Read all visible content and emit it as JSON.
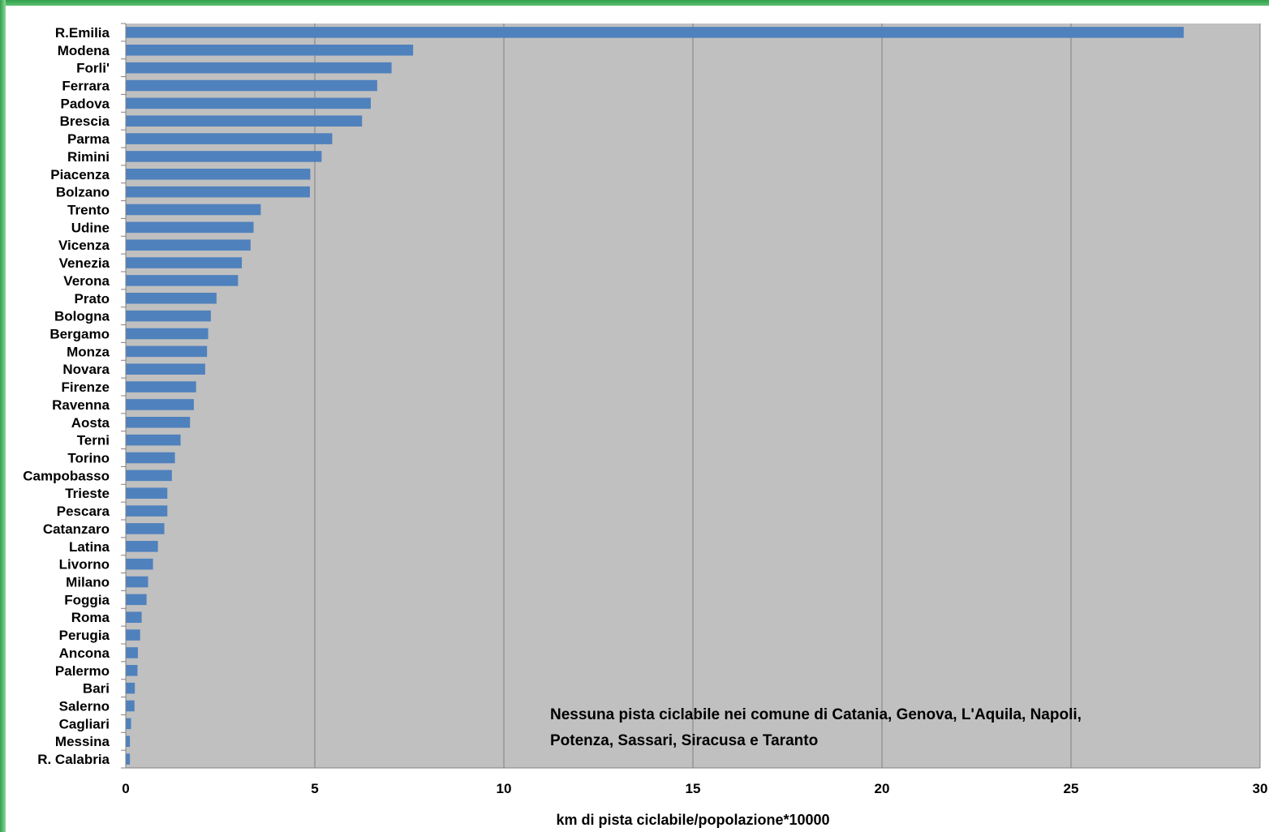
{
  "chart_data": {
    "type": "bar",
    "orientation": "horizontal",
    "categories": [
      "R.Emilia",
      "Modena",
      "Forli'",
      "Ferrara",
      "Padova",
      "Brescia",
      "Parma",
      "Rimini",
      "Piacenza",
      "Bolzano",
      "Trento",
      "Udine",
      "Vicenza",
      "Venezia",
      "Verona",
      "Prato",
      "Bologna",
      "Bergamo",
      "Monza",
      "Novara",
      "Firenze",
      "Ravenna",
      "Aosta",
      "Terni",
      "Torino",
      "Campobasso",
      "Trieste",
      "Pescara",
      "Catanzaro",
      "Latina",
      "Livorno",
      "Milano",
      "Foggia",
      "Roma",
      "Perugia",
      "Ancona",
      "Palermo",
      "Bari",
      "Salerno",
      "Cagliari",
      "Messina",
      "R. Calabria"
    ],
    "values": [
      27.98,
      7.6,
      7.03,
      6.65,
      6.48,
      6.25,
      5.46,
      5.18,
      4.88,
      4.87,
      3.57,
      3.38,
      3.3,
      3.07,
      2.97,
      2.4,
      2.25,
      2.18,
      2.15,
      2.1,
      1.86,
      1.8,
      1.7,
      1.45,
      1.3,
      1.22,
      1.1,
      1.1,
      1.02,
      0.85,
      0.72,
      0.59,
      0.55,
      0.42,
      0.38,
      0.32,
      0.31,
      0.24,
      0.23,
      0.14,
      0.11,
      0.11
    ],
    "xlabel": "km di pista ciclabile/popolazione*10000",
    "ylabel": "",
    "xlim": [
      0,
      30
    ],
    "xticks": [
      "0",
      "5",
      "10",
      "15",
      "20",
      "25",
      "30"
    ],
    "grid": true,
    "bar_color": "#4f81bd",
    "plot_background": "#c0c0c0",
    "annotation": {
      "line1": "Nessuna pista ciclabile nei comune di Catania, Genova, L'Aquila, Napoli,",
      "line2": "Potenza, Sassari, Siracusa e Taranto"
    }
  }
}
